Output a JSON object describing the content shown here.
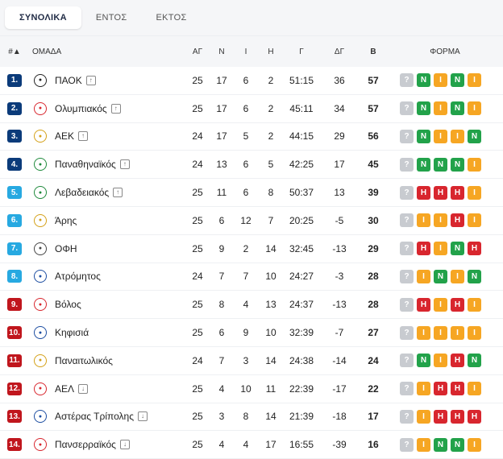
{
  "tabs": [
    {
      "label": "ΣΥΝΟΛΙΚΑ",
      "active": true
    },
    {
      "label": "ΕΝΤΟΣ",
      "active": false
    },
    {
      "label": "ΕΚΤΟΣ",
      "active": false
    }
  ],
  "header": {
    "pos": "#▲",
    "team": "ΟΜΑΔΑ",
    "played": "ΑΓ",
    "wins": "Ν",
    "draws": "Ι",
    "losses": "Η",
    "goals": "Γ",
    "diff": "ΔΓ",
    "points": "Β",
    "form": "ΦΟΡΜΑ"
  },
  "colors": {
    "W": "#22a24a",
    "D": "#f6a623",
    "L": "#d8262e",
    "unknown": "#c8cbd0",
    "pos_blue": "#0b3b7a",
    "pos_cyan": "#27a9e1",
    "pos_red": "#c0161d"
  },
  "rows": [
    {
      "pos": "1.",
      "pos_color": "pos_blue",
      "logo": "paok-logo",
      "logo_color": "#222222",
      "team": "ΠΑΟΚ",
      "trend": "up",
      "played": "25",
      "wins": "17",
      "draws": "6",
      "losses": "2",
      "goals": "51:15",
      "diff": "36",
      "points": "57",
      "form": [
        "?",
        "Ν",
        "Ι",
        "Ν",
        "Ι"
      ]
    },
    {
      "pos": "2.",
      "pos_color": "pos_blue",
      "logo": "olympiacos-logo",
      "logo_color": "#d8262e",
      "team": "Ολυμπιακός",
      "trend": "up",
      "played": "25",
      "wins": "17",
      "draws": "6",
      "losses": "2",
      "goals": "45:11",
      "diff": "34",
      "points": "57",
      "form": [
        "?",
        "Ν",
        "Ι",
        "Ν",
        "Ι"
      ]
    },
    {
      "pos": "3.",
      "pos_color": "pos_blue",
      "logo": "aek-logo",
      "logo_color": "#d4a017",
      "team": "ΑΕΚ",
      "trend": "up",
      "played": "24",
      "wins": "17",
      "draws": "5",
      "losses": "2",
      "goals": "44:15",
      "diff": "29",
      "points": "56",
      "form": [
        "?",
        "Ν",
        "Ι",
        "Ι",
        "Ν"
      ]
    },
    {
      "pos": "4.",
      "pos_color": "pos_blue",
      "logo": "panathinaikos-logo",
      "logo_color": "#1f8a3c",
      "team": "Παναθηναϊκός",
      "trend": "up",
      "played": "24",
      "wins": "13",
      "draws": "6",
      "losses": "5",
      "goals": "42:25",
      "diff": "17",
      "points": "45",
      "form": [
        "?",
        "Ν",
        "Ν",
        "Ν",
        "Ι"
      ]
    },
    {
      "pos": "5.",
      "pos_color": "pos_cyan",
      "logo": "levadiakos-logo",
      "logo_color": "#1f8a3c",
      "team": "Λεβαδειακός",
      "trend": "up",
      "played": "25",
      "wins": "11",
      "draws": "6",
      "losses": "8",
      "goals": "50:37",
      "diff": "13",
      "points": "39",
      "form": [
        "?",
        "Η",
        "Η",
        "Η",
        "Ι"
      ]
    },
    {
      "pos": "6.",
      "pos_color": "pos_cyan",
      "logo": "aris-logo",
      "logo_color": "#d4a017",
      "team": "Άρης",
      "trend": "none",
      "played": "25",
      "wins": "6",
      "draws": "12",
      "losses": "7",
      "goals": "20:25",
      "diff": "-5",
      "points": "30",
      "form": [
        "?",
        "Ι",
        "Ι",
        "Η",
        "Ι"
      ]
    },
    {
      "pos": "7.",
      "pos_color": "pos_cyan",
      "logo": "ofi-logo",
      "logo_color": "#444444",
      "team": "ΟΦΗ",
      "trend": "none",
      "played": "25",
      "wins": "9",
      "draws": "2",
      "losses": "14",
      "goals": "32:45",
      "diff": "-13",
      "points": "29",
      "form": [
        "?",
        "Η",
        "Ι",
        "Ν",
        "Η"
      ]
    },
    {
      "pos": "8.",
      "pos_color": "pos_cyan",
      "logo": "atromitos-logo",
      "logo_color": "#1c4da1",
      "team": "Ατρόμητος",
      "trend": "none",
      "played": "24",
      "wins": "7",
      "draws": "7",
      "losses": "10",
      "goals": "24:27",
      "diff": "-3",
      "points": "28",
      "form": [
        "?",
        "Ι",
        "Ν",
        "Ι",
        "Ν"
      ]
    },
    {
      "pos": "9.",
      "pos_color": "pos_red",
      "logo": "volos-logo",
      "logo_color": "#d8262e",
      "team": "Βόλος",
      "trend": "none",
      "played": "25",
      "wins": "8",
      "draws": "4",
      "losses": "13",
      "goals": "24:37",
      "diff": "-13",
      "points": "28",
      "form": [
        "?",
        "Η",
        "Ι",
        "Η",
        "Ι"
      ]
    },
    {
      "pos": "10.",
      "pos_color": "pos_red",
      "logo": "kifisia-logo",
      "logo_color": "#1c4da1",
      "team": "Κηφισιά",
      "trend": "none",
      "played": "25",
      "wins": "6",
      "draws": "9",
      "losses": "10",
      "goals": "32:39",
      "diff": "-7",
      "points": "27",
      "form": [
        "?",
        "Ι",
        "Ι",
        "Ι",
        "Ι"
      ]
    },
    {
      "pos": "11.",
      "pos_color": "pos_red",
      "logo": "panetolikos-logo",
      "logo_color": "#d4a017",
      "team": "Παναιτωλικός",
      "trend": "none",
      "played": "24",
      "wins": "7",
      "draws": "3",
      "losses": "14",
      "goals": "24:38",
      "diff": "-14",
      "points": "24",
      "form": [
        "?",
        "Ν",
        "Ι",
        "Η",
        "Ν"
      ]
    },
    {
      "pos": "12.",
      "pos_color": "pos_red",
      "logo": "ael-logo",
      "logo_color": "#d8262e",
      "team": "ΑΕΛ",
      "trend": "down",
      "played": "25",
      "wins": "4",
      "draws": "10",
      "losses": "11",
      "goals": "22:39",
      "diff": "-17",
      "points": "22",
      "form": [
        "?",
        "Ι",
        "Η",
        "Η",
        "Ι"
      ]
    },
    {
      "pos": "13.",
      "pos_color": "pos_red",
      "logo": "asteras-logo",
      "logo_color": "#1c4da1",
      "team": "Αστέρας Τρίπολης",
      "trend": "down",
      "played": "25",
      "wins": "3",
      "draws": "8",
      "losses": "14",
      "goals": "21:39",
      "diff": "-18",
      "points": "17",
      "form": [
        "?",
        "Ι",
        "Η",
        "Η",
        "Η"
      ]
    },
    {
      "pos": "14.",
      "pos_color": "pos_red",
      "logo": "panserraikos-logo",
      "logo_color": "#d8262e",
      "team": "Πανσερραϊκός",
      "trend": "down",
      "played": "25",
      "wins": "4",
      "draws": "4",
      "losses": "17",
      "goals": "16:55",
      "diff": "-39",
      "points": "16",
      "form": [
        "?",
        "Ι",
        "Ν",
        "Ν",
        "Ι"
      ]
    }
  ]
}
